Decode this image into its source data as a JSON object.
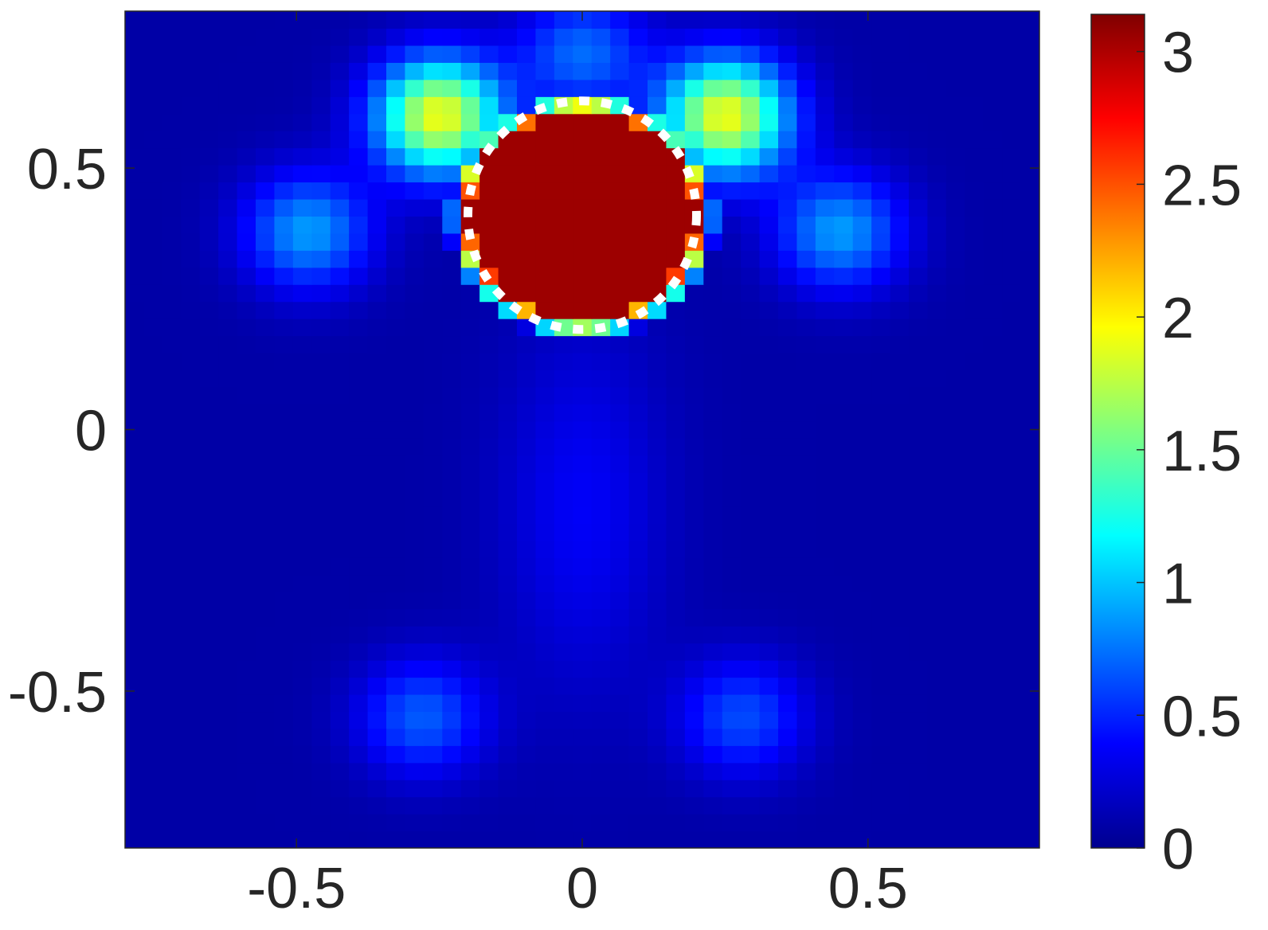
{
  "chart_data": {
    "type": "heatmap",
    "title": "",
    "xlabel": "",
    "ylabel": "",
    "xlim": [
      -0.8,
      0.8
    ],
    "ylim": [
      -0.8,
      0.8
    ],
    "xticks": [
      -0.5,
      0,
      0.5
    ],
    "xtick_labels": [
      "-0.5",
      "0",
      "0.5"
    ],
    "yticks": [
      -0.5,
      0,
      0.5
    ],
    "ytick_labels": [
      "-0.5",
      "0",
      "0.5"
    ],
    "grid": false,
    "colormap": "jet",
    "grid_resolution": [
      49,
      49
    ],
    "colorbar": {
      "location": "right",
      "limits": [
        0,
        3.14
      ],
      "ticks": [
        0,
        0.5,
        1,
        1.5,
        2,
        2.5,
        3
      ],
      "tick_labels": [
        "0",
        "0.5",
        "1",
        "1.5",
        "2",
        "2.5",
        "3"
      ]
    },
    "features": {
      "inclusion": {
        "center": [
          0,
          0.41
        ],
        "radius": 0.2,
        "value": 3.05
      },
      "side_lobes": [
        {
          "center": [
            -0.48,
            0.38
          ],
          "value": 0.75
        },
        {
          "center": [
            0.45,
            0.38
          ],
          "value": 0.75
        },
        {
          "center": [
            -0.25,
            0.6
          ],
          "value": 1.8
        },
        {
          "center": [
            0.25,
            0.6
          ],
          "value": 1.8
        },
        {
          "center": [
            0.0,
            0.72
          ],
          "value": 0.6
        },
        {
          "center": [
            -0.28,
            -0.55
          ],
          "value": 0.55
        },
        {
          "center": [
            0.28,
            -0.55
          ],
          "value": 0.5
        }
      ]
    },
    "annotation": {
      "type": "dashed-circle",
      "center": [
        0,
        0.41
      ],
      "radius": 0.2,
      "color": "#ffffff"
    }
  }
}
